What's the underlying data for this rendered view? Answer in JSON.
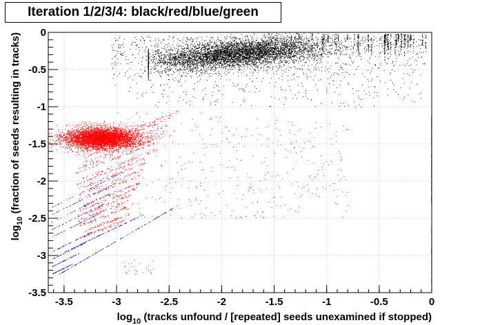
{
  "chart_data": {
    "type": "scatter",
    "title": "Iteration 1/2/3/4: black/red/blue/green",
    "xlabel": {
      "main": "log",
      "sub": "10",
      "rest": " (tracks unfound / [repeated] seeds unexamined if stopped)"
    },
    "ylabel": {
      "main": "log",
      "sub": "10",
      "rest": " (fraction of seeds resulting in tracks)"
    },
    "xlim": [
      -3.65,
      0
    ],
    "ylim": [
      -3.5,
      0
    ],
    "x_ticks": [
      -3.5,
      -3,
      -2.5,
      -2,
      -1.5,
      -1,
      -0.5,
      0
    ],
    "x_tick_labels": [
      "-3.5",
      "-3",
      "-2.5",
      "-2",
      "-1.5",
      "-1",
      "-0.5",
      "0"
    ],
    "y_ticks": [
      0,
      -0.5,
      -1,
      -1.5,
      -2,
      -2.5,
      -3,
      -3.5
    ],
    "y_tick_labels": [
      "0",
      "-0.5",
      "-1",
      "-1.5",
      "-2",
      "-2.5",
      "-3",
      "-3.5"
    ],
    "grid": true,
    "series": [
      {
        "color": "#000000",
        "cluster_center": [
          -1.85,
          -0.22
        ],
        "x_range": [
          -3.05,
          0
        ],
        "y_range": [
          -1.05,
          0
        ],
        "approx_points": 9000
      },
      {
        "color": "#ff0000",
        "cluster_center": [
          -3.15,
          -1.42
        ],
        "x_range": [
          -3.6,
          0
        ],
        "y_range": [
          -2.7,
          -1.05
        ],
        "approx_points": 7000
      },
      {
        "color": "#0000ff",
        "cluster_center": [
          -3.3,
          -2.8
        ],
        "x_range": [
          -3.65,
          -2.4
        ],
        "y_range": [
          -3.3,
          -2.3
        ],
        "approx_points": 600
      },
      {
        "color": "#008000",
        "cluster_center": [
          -2.8,
          -3.1
        ],
        "x_range": [
          -3.3,
          0
        ],
        "y_range": [
          -3.5,
          -2.5
        ],
        "approx_points": 60
      }
    ]
  }
}
